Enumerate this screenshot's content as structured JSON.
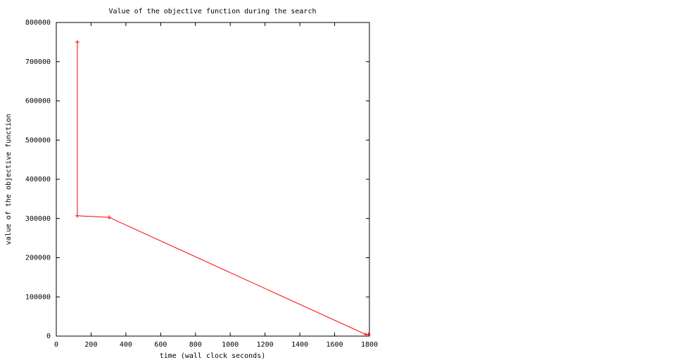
{
  "chart_data": {
    "type": "line",
    "title": "Value of the objective function during the search",
    "x_label": "time (wall clock seconds)",
    "y_label": "value of the objective function",
    "series": [
      {
        "color": "#ff0000",
        "x": [
          121,
          121,
          303,
          1780,
          1795
        ],
        "values": [
          750000,
          307000,
          303000,
          4000,
          4000
        ]
      }
    ],
    "xlim": [
      0,
      1800
    ],
    "xticks": [
      0,
      200,
      400,
      600,
      800,
      1000,
      1200,
      1400,
      1600,
      1800
    ],
    "ylim": [
      0,
      800000
    ],
    "yticks": [
      0,
      100000,
      200000,
      300000,
      400000,
      500000,
      600000,
      700000,
      800000
    ]
  }
}
